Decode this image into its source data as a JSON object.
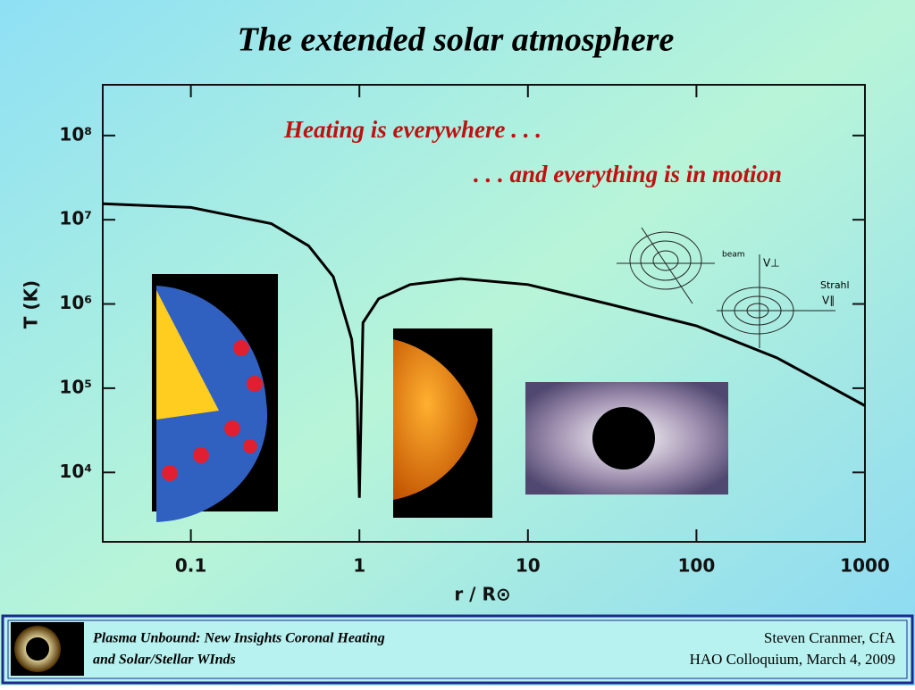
{
  "chart_data": {
    "type": "line",
    "title": "The extended solar atmosphere",
    "annotations": [
      "Heating is everywhere . . .",
      ". . . and everything is in motion"
    ],
    "x_label": "r / R⊙",
    "y_label": "T (K)",
    "x": [
      0.03,
      0.1,
      0.3,
      0.5,
      0.7,
      0.9,
      0.97,
      1.0,
      1.05,
      1.3,
      2,
      4,
      10,
      30,
      100,
      300,
      1000
    ],
    "values": [
      15500000,
      14000000,
      9000000,
      4900000,
      2100000,
      380000,
      70000,
      5000,
      600000,
      1150000,
      1700000,
      2000000,
      1700000,
      1000000,
      550000,
      230000,
      62000
    ],
    "color": "#000000",
    "xscale": "log",
    "yscale": "log",
    "xlim": [
      0.03,
      1000
    ],
    "ylim": [
      1500,
      400000000
    ],
    "xticks": [
      0.1,
      1,
      10,
      100,
      1000
    ],
    "yticks": [
      {
        "value": 10000,
        "label": "10⁴"
      },
      {
        "value": 100000,
        "label": "10⁵"
      },
      {
        "value": 1000000,
        "label": "10⁶"
      },
      {
        "value": 10000000,
        "label": "10⁷"
      },
      {
        "value": 100000000,
        "label": "10⁸"
      }
    ],
    "inset_labels": [
      "beam",
      "V⊥",
      "Strahl",
      "V∥"
    ]
  },
  "footer": {
    "left": [
      "Plasma Unbound:  New Insights Coronal Heating",
      "and Solar/Stellar WInds"
    ],
    "right": [
      "Steven Cranmer,  CfA",
      "HAO Colloquium, March 4, 2009"
    ]
  }
}
